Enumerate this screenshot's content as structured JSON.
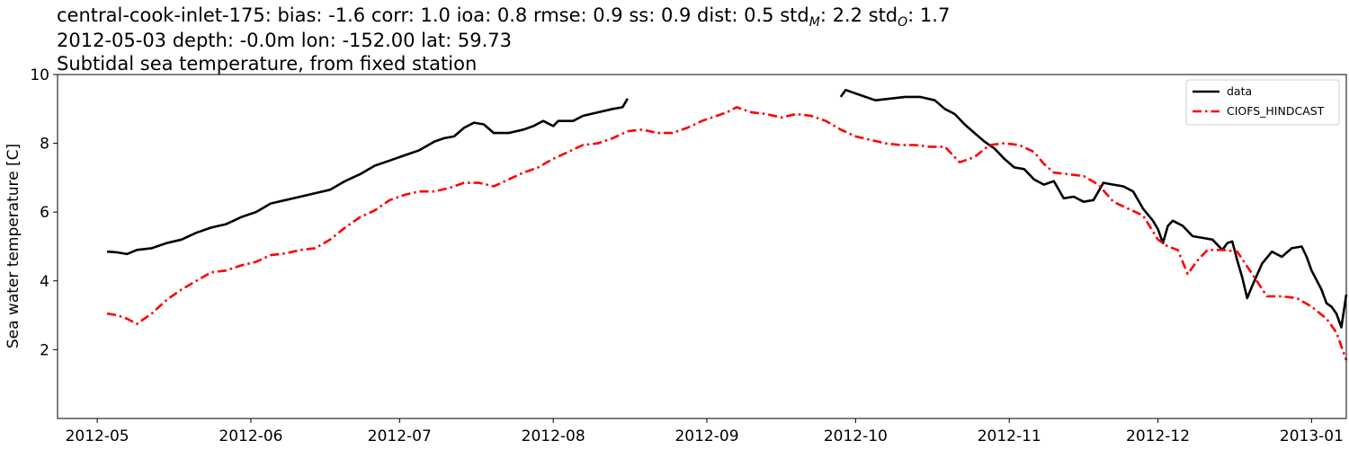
{
  "chart_data": {
    "type": "line",
    "title_lines": [
      "central-cook-inlet-175: bias: -1.6  corr: 1.0  ioa: 0.8  rmse: 0.9  ss: 0.9  dist: 0.5  std",
      "2012-05-03 depth: -0.0m lon: -152.00 lat: 59.73",
      "Subtidal sea temperature, from fixed station"
    ],
    "title_stats_tail": {
      "std_m_sub": "M",
      "std_m_value": ": 2.2  std",
      "std_o_sub": "O",
      "std_o_value": ": 1.7"
    },
    "ylabel": "Sea water temperature [C]",
    "xlabel": "",
    "xlim": [
      "2012-04-23",
      "2013-01-08"
    ],
    "ylim": [
      0,
      10
    ],
    "x_ticks": [
      "2012-05",
      "2012-06",
      "2012-07",
      "2012-08",
      "2012-09",
      "2012-10",
      "2012-11",
      "2012-12",
      "2013-01"
    ],
    "y_ticks": [
      "2",
      "4",
      "6",
      "8",
      "10"
    ],
    "grid": false,
    "legend_position": "top-right",
    "series": [
      {
        "name": "data",
        "color": "#000000",
        "style": "solid",
        "segments": [
          [
            [
              "2012-05-03",
              4.85
            ],
            [
              "2012-05-05",
              4.83
            ],
            [
              "2012-05-07",
              4.78
            ],
            [
              "2012-05-09",
              4.9
            ],
            [
              "2012-05-12",
              4.95
            ],
            [
              "2012-05-15",
              5.1
            ],
            [
              "2012-05-18",
              5.2
            ],
            [
              "2012-05-21",
              5.4
            ],
            [
              "2012-05-24",
              5.55
            ],
            [
              "2012-05-27",
              5.65
            ],
            [
              "2012-05-30",
              5.85
            ],
            [
              "2012-06-02",
              6.0
            ],
            [
              "2012-06-05",
              6.25
            ],
            [
              "2012-06-08",
              6.35
            ],
            [
              "2012-06-11",
              6.45
            ],
            [
              "2012-06-14",
              6.55
            ],
            [
              "2012-06-17",
              6.65
            ],
            [
              "2012-06-20",
              6.9
            ],
            [
              "2012-06-23",
              7.1
            ],
            [
              "2012-06-26",
              7.35
            ],
            [
              "2012-06-29",
              7.5
            ],
            [
              "2012-07-02",
              7.65
            ],
            [
              "2012-07-05",
              7.8
            ],
            [
              "2012-07-08",
              8.05
            ],
            [
              "2012-07-10",
              8.15
            ],
            [
              "2012-07-12",
              8.2
            ],
            [
              "2012-07-14",
              8.45
            ],
            [
              "2012-07-16",
              8.6
            ],
            [
              "2012-07-18",
              8.55
            ],
            [
              "2012-07-20",
              8.3
            ],
            [
              "2012-07-23",
              8.3
            ],
            [
              "2012-07-26",
              8.4
            ],
            [
              "2012-07-28",
              8.5
            ],
            [
              "2012-07-30",
              8.65
            ],
            [
              "2012-08-01",
              8.5
            ],
            [
              "2012-08-02",
              8.65
            ],
            [
              "2012-08-05",
              8.65
            ],
            [
              "2012-08-07",
              8.8
            ],
            [
              "2012-08-10",
              8.9
            ],
            [
              "2012-08-13",
              9.0
            ],
            [
              "2012-08-15",
              9.05
            ],
            [
              "2012-08-16",
              9.3
            ]
          ],
          [
            [
              "2012-09-28",
              9.35
            ],
            [
              "2012-09-29",
              9.55
            ],
            [
              "2012-10-02",
              9.4
            ],
            [
              "2012-10-05",
              9.25
            ],
            [
              "2012-10-08",
              9.3
            ],
            [
              "2012-10-11",
              9.35
            ],
            [
              "2012-10-14",
              9.35
            ],
            [
              "2012-10-17",
              9.25
            ],
            [
              "2012-10-19",
              9.0
            ],
            [
              "2012-10-21",
              8.85
            ],
            [
              "2012-10-23",
              8.55
            ],
            [
              "2012-10-25",
              8.3
            ],
            [
              "2012-10-27",
              8.05
            ],
            [
              "2012-10-29",
              7.85
            ],
            [
              "2012-10-31",
              7.55
            ],
            [
              "2012-11-02",
              7.3
            ],
            [
              "2012-11-04",
              7.25
            ],
            [
              "2012-11-06",
              6.95
            ],
            [
              "2012-11-08",
              6.8
            ],
            [
              "2012-11-10",
              6.9
            ],
            [
              "2012-11-12",
              6.4
            ],
            [
              "2012-11-14",
              6.45
            ],
            [
              "2012-11-16",
              6.3
            ],
            [
              "2012-11-18",
              6.35
            ],
            [
              "2012-11-20",
              6.85
            ],
            [
              "2012-11-22",
              6.8
            ],
            [
              "2012-11-24",
              6.75
            ],
            [
              "2012-11-26",
              6.6
            ],
            [
              "2012-11-28",
              6.1
            ],
            [
              "2012-11-30",
              5.75
            ],
            [
              "2012-12-01",
              5.5
            ],
            [
              "2012-12-02",
              5.1
            ],
            [
              "2012-12-03",
              5.6
            ],
            [
              "2012-12-04",
              5.75
            ],
            [
              "2012-12-06",
              5.6
            ],
            [
              "2012-12-08",
              5.3
            ],
            [
              "2012-12-10",
              5.25
            ],
            [
              "2012-12-12",
              5.2
            ],
            [
              "2012-12-14",
              4.9
            ],
            [
              "2012-12-15",
              5.1
            ],
            [
              "2012-12-16",
              5.15
            ],
            [
              "2012-12-17",
              4.6
            ],
            [
              "2012-12-18",
              4.1
            ],
            [
              "2012-12-19",
              3.5
            ],
            [
              "2012-12-20",
              3.85
            ],
            [
              "2012-12-22",
              4.5
            ],
            [
              "2012-12-24",
              4.85
            ],
            [
              "2012-12-26",
              4.7
            ],
            [
              "2012-12-28",
              4.95
            ],
            [
              "2012-12-30",
              5.0
            ],
            [
              "2012-12-31",
              4.7
            ],
            [
              "2013-01-01",
              4.3
            ],
            [
              "2013-01-03",
              3.75
            ],
            [
              "2013-01-04",
              3.35
            ],
            [
              "2013-01-05",
              3.25
            ],
            [
              "2013-01-06",
              3.05
            ],
            [
              "2013-01-07",
              2.65
            ],
            [
              "2013-01-08",
              3.6
            ]
          ]
        ]
      },
      {
        "name": "CIOFS_HINDCAST",
        "color": "#ff0000",
        "style": "dashdot",
        "segments": [
          [
            [
              "2012-05-03",
              3.05
            ],
            [
              "2012-05-05",
              3.0
            ],
            [
              "2012-05-07",
              2.9
            ],
            [
              "2012-05-09",
              2.75
            ],
            [
              "2012-05-12",
              3.05
            ],
            [
              "2012-05-15",
              3.45
            ],
            [
              "2012-05-18",
              3.75
            ],
            [
              "2012-05-21",
              4.0
            ],
            [
              "2012-05-24",
              4.25
            ],
            [
              "2012-05-27",
              4.3
            ],
            [
              "2012-05-30",
              4.45
            ],
            [
              "2012-06-02",
              4.55
            ],
            [
              "2012-06-05",
              4.75
            ],
            [
              "2012-06-08",
              4.8
            ],
            [
              "2012-06-11",
              4.9
            ],
            [
              "2012-06-14",
              4.95
            ],
            [
              "2012-06-17",
              5.2
            ],
            [
              "2012-06-20",
              5.55
            ],
            [
              "2012-06-23",
              5.85
            ],
            [
              "2012-06-26",
              6.05
            ],
            [
              "2012-06-29",
              6.35
            ],
            [
              "2012-07-02",
              6.5
            ],
            [
              "2012-07-05",
              6.6
            ],
            [
              "2012-07-08",
              6.6
            ],
            [
              "2012-07-11",
              6.7
            ],
            [
              "2012-07-14",
              6.85
            ],
            [
              "2012-07-17",
              6.85
            ],
            [
              "2012-07-20",
              6.75
            ],
            [
              "2012-07-23",
              6.95
            ],
            [
              "2012-07-26",
              7.15
            ],
            [
              "2012-07-29",
              7.3
            ],
            [
              "2012-08-01",
              7.55
            ],
            [
              "2012-08-04",
              7.75
            ],
            [
              "2012-08-07",
              7.95
            ],
            [
              "2012-08-10",
              8.0
            ],
            [
              "2012-08-13",
              8.15
            ],
            [
              "2012-08-16",
              8.35
            ],
            [
              "2012-08-19",
              8.4
            ],
            [
              "2012-08-22",
              8.3
            ],
            [
              "2012-08-25",
              8.3
            ],
            [
              "2012-08-28",
              8.45
            ],
            [
              "2012-08-31",
              8.65
            ],
            [
              "2012-09-03",
              8.8
            ],
            [
              "2012-09-05",
              8.9
            ],
            [
              "2012-09-07",
              9.05
            ],
            [
              "2012-09-10",
              8.9
            ],
            [
              "2012-09-13",
              8.85
            ],
            [
              "2012-09-16",
              8.75
            ],
            [
              "2012-09-19",
              8.85
            ],
            [
              "2012-09-22",
              8.8
            ],
            [
              "2012-09-25",
              8.65
            ],
            [
              "2012-09-28",
              8.4
            ],
            [
              "2012-10-01",
              8.2
            ],
            [
              "2012-10-04",
              8.1
            ],
            [
              "2012-10-07",
              8.0
            ],
            [
              "2012-10-10",
              7.95
            ],
            [
              "2012-10-13",
              7.95
            ],
            [
              "2012-10-16",
              7.9
            ],
            [
              "2012-10-19",
              7.9
            ],
            [
              "2012-10-22",
              7.45
            ],
            [
              "2012-10-25",
              7.6
            ],
            [
              "2012-10-28",
              7.95
            ],
            [
              "2012-10-31",
              8.0
            ],
            [
              "2012-11-03",
              7.95
            ],
            [
              "2012-11-06",
              7.75
            ],
            [
              "2012-11-08",
              7.4
            ],
            [
              "2012-11-10",
              7.15
            ],
            [
              "2012-11-13",
              7.1
            ],
            [
              "2012-11-16",
              7.05
            ],
            [
              "2012-11-19",
              6.8
            ],
            [
              "2012-11-22",
              6.3
            ],
            [
              "2012-11-25",
              6.1
            ],
            [
              "2012-11-28",
              5.9
            ],
            [
              "2012-12-01",
              5.2
            ],
            [
              "2012-12-03",
              5.0
            ],
            [
              "2012-12-05",
              4.9
            ],
            [
              "2012-12-07",
              4.2
            ],
            [
              "2012-12-09",
              4.6
            ],
            [
              "2012-12-11",
              4.9
            ],
            [
              "2012-12-14",
              4.9
            ],
            [
              "2012-12-17",
              4.85
            ],
            [
              "2012-12-20",
              4.2
            ],
            [
              "2012-12-23",
              3.55
            ],
            [
              "2012-12-26",
              3.55
            ],
            [
              "2012-12-29",
              3.5
            ],
            [
              "2013-01-01",
              3.25
            ],
            [
              "2013-01-04",
              2.9
            ],
            [
              "2013-01-06",
              2.5
            ],
            [
              "2013-01-08",
              1.7
            ]
          ]
        ]
      }
    ]
  }
}
